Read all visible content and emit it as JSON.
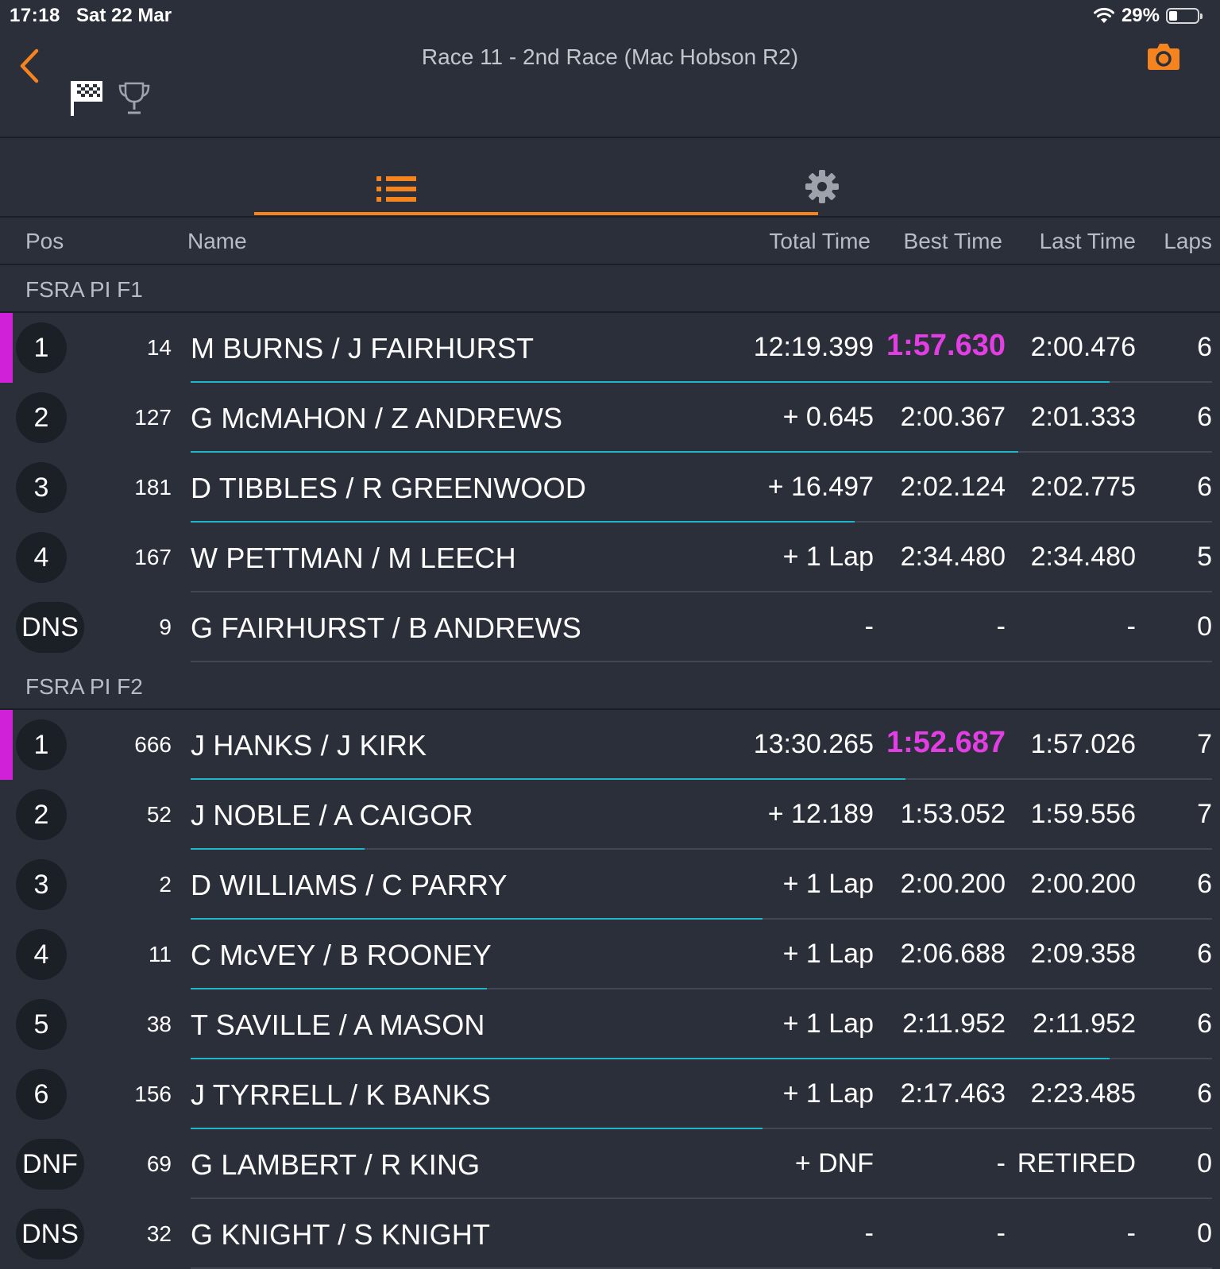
{
  "status_bar": {
    "time": "17:18",
    "date": "Sat 22 Mar",
    "battery": "29%",
    "battery_level": 0.29
  },
  "header": {
    "title": "Race 11 - 2nd Race (Mac Hobson R2)"
  },
  "icons": {
    "back": "chevron-left-icon",
    "camera": "camera-icon",
    "flag": "checkered-flag-icon",
    "trophy": "trophy-icon",
    "list": "list-icon",
    "settings": "gear-icon"
  },
  "colors": {
    "accent": "#f5841f",
    "fastest": "#e23ee4",
    "progress": "#1fb6c8",
    "background": "#2a2f3a"
  },
  "columns": {
    "pos": "Pos",
    "name": "Name",
    "total": "Total Time",
    "best": "Best Time",
    "last": "Last Time",
    "laps": "Laps"
  },
  "classes": [
    {
      "name": "FSRA PI F1",
      "rows": [
        {
          "pos": "1",
          "num": "14",
          "name": "M BURNS / J FAIRHURST",
          "total": "12:19.399",
          "best": "1:57.630",
          "last": "2:00.476",
          "laps": "6",
          "fastest": true,
          "leader": true,
          "progress": 0.9
        },
        {
          "pos": "2",
          "num": "127",
          "name": "G McMAHON / Z ANDREWS",
          "total": "+ 0.645",
          "best": "2:00.367",
          "last": "2:01.333",
          "laps": "6",
          "progress": 0.81
        },
        {
          "pos": "3",
          "num": "181",
          "name": "D TIBBLES / R GREENWOOD",
          "total": "+ 16.497",
          "best": "2:02.124",
          "last": "2:02.775",
          "laps": "6",
          "progress": 0.65
        },
        {
          "pos": "4",
          "num": "167",
          "name": "W PETTMAN / M LEECH",
          "total": "+ 1 Lap",
          "best": "2:34.480",
          "last": "2:34.480",
          "laps": "5",
          "progress": 0
        },
        {
          "pos": "DNS",
          "num": "9",
          "name": "G FAIRHURST / B ANDREWS",
          "total": "-",
          "best": "-",
          "last": "-",
          "laps": "0",
          "progress": 0
        }
      ]
    },
    {
      "name": "FSRA PI F2",
      "rows": [
        {
          "pos": "1",
          "num": "666",
          "name": "J HANKS / J KIRK",
          "total": "13:30.265",
          "best": "1:52.687",
          "last": "1:57.026",
          "laps": "7",
          "fastest": true,
          "leader": true,
          "progress": 0.7
        },
        {
          "pos": "2",
          "num": "52",
          "name": "J NOBLE / A CAIGOR",
          "total": "+ 12.189",
          "best": "1:53.052",
          "last": "1:59.556",
          "laps": "7",
          "progress": 0.17
        },
        {
          "pos": "3",
          "num": "2",
          "name": "D WILLIAMS / C PARRY",
          "total": "+ 1 Lap",
          "best": "2:00.200",
          "last": "2:00.200",
          "laps": "6",
          "progress": 0.56
        },
        {
          "pos": "4",
          "num": "11",
          "name": "C McVEY / B ROONEY",
          "total": "+ 1 Lap",
          "best": "2:06.688",
          "last": "2:09.358",
          "laps": "6",
          "progress": 0.29
        },
        {
          "pos": "5",
          "num": "38",
          "name": "T SAVILLE / A MASON",
          "total": "+ 1 Lap",
          "best": "2:11.952",
          "last": "2:11.952",
          "laps": "6",
          "progress": 0.9
        },
        {
          "pos": "6",
          "num": "156",
          "name": "J TYRRELL / K BANKS",
          "total": "+ 1 Lap",
          "best": "2:17.463",
          "last": "2:23.485",
          "laps": "6",
          "progress": 0.56
        },
        {
          "pos": "DNF",
          "num": "69",
          "name": "G LAMBERT / R KING",
          "total": "+ DNF",
          "best": "-",
          "last": "RETIRED",
          "laps": "0",
          "progress": 0
        },
        {
          "pos": "DNS",
          "num": "32",
          "name": "G KNIGHT / S KNIGHT",
          "total": "-",
          "best": "-",
          "last": "-",
          "laps": "0",
          "progress": 0
        }
      ]
    }
  ]
}
